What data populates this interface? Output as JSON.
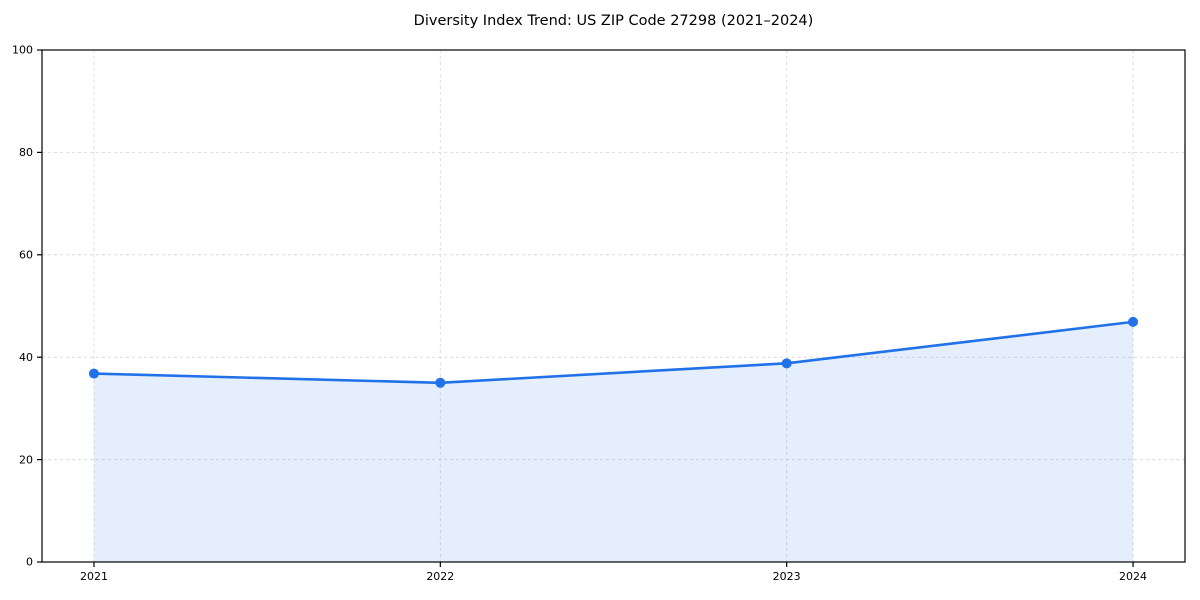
{
  "title": "Diversity Index Trend: US ZIP Code 27298 (2021–2024)",
  "chart_data": {
    "type": "line",
    "title": "Diversity Index Trend: US ZIP Code 27298 (2021–2024)",
    "categories": [
      "2021",
      "2022",
      "2023",
      "2024"
    ],
    "series": [
      {
        "name": "Diversity Index",
        "values": [
          36.8,
          35.0,
          38.8,
          46.9
        ]
      }
    ],
    "xlabel": "",
    "ylabel": "",
    "ylim": [
      0,
      100
    ],
    "yticks": [
      0,
      20,
      40,
      60,
      80,
      100
    ],
    "grid": "dashed-both-axes",
    "legend": "none",
    "area_fill": true,
    "marker": "circle",
    "colors": {
      "line": "#2171e8",
      "marker": "#2171e8",
      "area_fill": "rgba(33,113,232,0.12)",
      "grid": "#dcdcdc",
      "spine": "#000000",
      "background": "#ffffff",
      "text": "#000000"
    }
  }
}
